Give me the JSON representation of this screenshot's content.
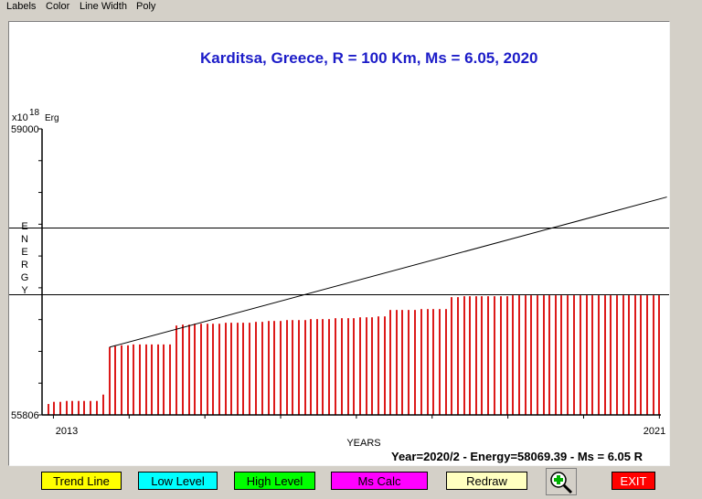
{
  "menu": {
    "items": [
      "Labels",
      "Color",
      "Line Width",
      "Poly"
    ]
  },
  "chart_data": {
    "type": "bar",
    "title": "Karditsa, Greece, R = 100 Km, Ms = 6.05, 2020",
    "unit_prefix": "x10",
    "unit_exponent": "18",
    "unit": "Erg",
    "ylabel_letters": [
      "E",
      "N",
      "E",
      "R",
      "G",
      "Y"
    ],
    "xlabel": "YEARS",
    "ylim": [
      55806,
      59000
    ],
    "ytick_labels": [
      "59000",
      "55806"
    ],
    "xlim": [
      2012.85,
      2021.02
    ],
    "xtick_labels": [
      "2013",
      "2021"
    ],
    "reference_levels": [
      57900,
      57150
    ],
    "trend_line": {
      "x": [
        2013.74,
        2021.1
      ],
      "y": [
        56562,
        58239
      ]
    },
    "colors": {
      "bars": "#dc1a1a",
      "title": "#1c1cc8",
      "lines": "#000000"
    },
    "bars": [
      {
        "x": 2012.93,
        "y": 55928
      },
      {
        "x": 2013.01,
        "y": 55952
      },
      {
        "x": 2013.09,
        "y": 55952
      },
      {
        "x": 2013.17,
        "y": 55962
      },
      {
        "x": 2013.25,
        "y": 55962
      },
      {
        "x": 2013.33,
        "y": 55962
      },
      {
        "x": 2013.41,
        "y": 55962
      },
      {
        "x": 2013.49,
        "y": 55962
      },
      {
        "x": 2013.57,
        "y": 55962
      },
      {
        "x": 2013.66,
        "y": 56033
      },
      {
        "x": 2013.74,
        "y": 56562
      },
      {
        "x": 2013.82,
        "y": 56573
      },
      {
        "x": 2013.9,
        "y": 56583
      },
      {
        "x": 2013.98,
        "y": 56583
      },
      {
        "x": 2014.06,
        "y": 56593
      },
      {
        "x": 2014.14,
        "y": 56593
      },
      {
        "x": 2014.22,
        "y": 56593
      },
      {
        "x": 2014.3,
        "y": 56593
      },
      {
        "x": 2014.38,
        "y": 56593
      },
      {
        "x": 2014.46,
        "y": 56593
      },
      {
        "x": 2014.54,
        "y": 56593
      },
      {
        "x": 2014.62,
        "y": 56804
      },
      {
        "x": 2014.71,
        "y": 56814
      },
      {
        "x": 2014.79,
        "y": 56814
      },
      {
        "x": 2014.87,
        "y": 56824
      },
      {
        "x": 2014.95,
        "y": 56824
      },
      {
        "x": 2015.03,
        "y": 56824
      },
      {
        "x": 2015.11,
        "y": 56824
      },
      {
        "x": 2015.19,
        "y": 56824
      },
      {
        "x": 2015.27,
        "y": 56835
      },
      {
        "x": 2015.35,
        "y": 56835
      },
      {
        "x": 2015.43,
        "y": 56835
      },
      {
        "x": 2015.51,
        "y": 56835
      },
      {
        "x": 2015.59,
        "y": 56835
      },
      {
        "x": 2015.67,
        "y": 56845
      },
      {
        "x": 2015.76,
        "y": 56845
      },
      {
        "x": 2015.84,
        "y": 56855
      },
      {
        "x": 2015.92,
        "y": 56855
      },
      {
        "x": 2016.0,
        "y": 56855
      },
      {
        "x": 2016.08,
        "y": 56865
      },
      {
        "x": 2016.16,
        "y": 56865
      },
      {
        "x": 2016.24,
        "y": 56865
      },
      {
        "x": 2016.32,
        "y": 56865
      },
      {
        "x": 2016.4,
        "y": 56876
      },
      {
        "x": 2016.48,
        "y": 56876
      },
      {
        "x": 2016.56,
        "y": 56876
      },
      {
        "x": 2016.64,
        "y": 56876
      },
      {
        "x": 2016.72,
        "y": 56886
      },
      {
        "x": 2016.81,
        "y": 56886
      },
      {
        "x": 2016.89,
        "y": 56886
      },
      {
        "x": 2016.97,
        "y": 56886
      },
      {
        "x": 2017.05,
        "y": 56896
      },
      {
        "x": 2017.13,
        "y": 56896
      },
      {
        "x": 2017.21,
        "y": 56896
      },
      {
        "x": 2017.29,
        "y": 56906
      },
      {
        "x": 2017.37,
        "y": 56906
      },
      {
        "x": 2017.45,
        "y": 56978
      },
      {
        "x": 2017.53,
        "y": 56978
      },
      {
        "x": 2017.61,
        "y": 56978
      },
      {
        "x": 2017.69,
        "y": 56978
      },
      {
        "x": 2017.77,
        "y": 56978
      },
      {
        "x": 2017.86,
        "y": 56988
      },
      {
        "x": 2017.94,
        "y": 56988
      },
      {
        "x": 2018.02,
        "y": 56988
      },
      {
        "x": 2018.1,
        "y": 56988
      },
      {
        "x": 2018.18,
        "y": 56988
      },
      {
        "x": 2018.26,
        "y": 57121
      },
      {
        "x": 2018.34,
        "y": 57121
      },
      {
        "x": 2018.42,
        "y": 57131
      },
      {
        "x": 2018.5,
        "y": 57131
      },
      {
        "x": 2018.58,
        "y": 57131
      },
      {
        "x": 2018.66,
        "y": 57131
      },
      {
        "x": 2018.74,
        "y": 57131
      },
      {
        "x": 2018.82,
        "y": 57131
      },
      {
        "x": 2018.91,
        "y": 57131
      },
      {
        "x": 2018.99,
        "y": 57131
      },
      {
        "x": 2019.07,
        "y": 57141
      },
      {
        "x": 2019.15,
        "y": 57141
      },
      {
        "x": 2019.23,
        "y": 57141
      },
      {
        "x": 2019.31,
        "y": 57141
      },
      {
        "x": 2019.39,
        "y": 57141
      },
      {
        "x": 2019.47,
        "y": 57141
      },
      {
        "x": 2019.55,
        "y": 57141
      },
      {
        "x": 2019.63,
        "y": 57141
      },
      {
        "x": 2019.71,
        "y": 57141
      },
      {
        "x": 2019.79,
        "y": 57141
      },
      {
        "x": 2019.87,
        "y": 57141
      },
      {
        "x": 2019.96,
        "y": 57141
      },
      {
        "x": 2020.04,
        "y": 57141
      },
      {
        "x": 2020.12,
        "y": 57141
      },
      {
        "x": 2020.2,
        "y": 57141
      },
      {
        "x": 2020.28,
        "y": 57141
      },
      {
        "x": 2020.36,
        "y": 57141
      },
      {
        "x": 2020.44,
        "y": 57141
      },
      {
        "x": 2020.52,
        "y": 57141
      },
      {
        "x": 2020.6,
        "y": 57141
      },
      {
        "x": 2020.68,
        "y": 57141
      },
      {
        "x": 2020.76,
        "y": 57141
      },
      {
        "x": 2020.84,
        "y": 57141
      },
      {
        "x": 2020.92,
        "y": 57141
      },
      {
        "x": 2021.0,
        "y": 57141
      }
    ]
  },
  "status_text": "Year=2020/2 - Energy=58069.39 - Ms = 6.05 R",
  "buttons": [
    {
      "name": "trend-line-button",
      "label": "Trend Line",
      "bg": "#ffff00",
      "fg": "#000000"
    },
    {
      "name": "low-level-button",
      "label": "Low Level",
      "bg": "#00ffff",
      "fg": "#000000"
    },
    {
      "name": "high-level-button",
      "label": "High Level",
      "bg": "#00ff00",
      "fg": "#000000"
    },
    {
      "name": "ms-calc-button",
      "label": "Ms Calc",
      "bg": "#ff00ff",
      "fg": "#000000"
    },
    {
      "name": "redraw-button",
      "label": "Redraw",
      "bg": "#ffffc0",
      "fg": "#000000"
    },
    {
      "name": "exit-button",
      "label": "EXIT",
      "bg": "#ff0000",
      "fg": "#ffffff"
    }
  ],
  "zoom_icon": "zoom-in-icon"
}
